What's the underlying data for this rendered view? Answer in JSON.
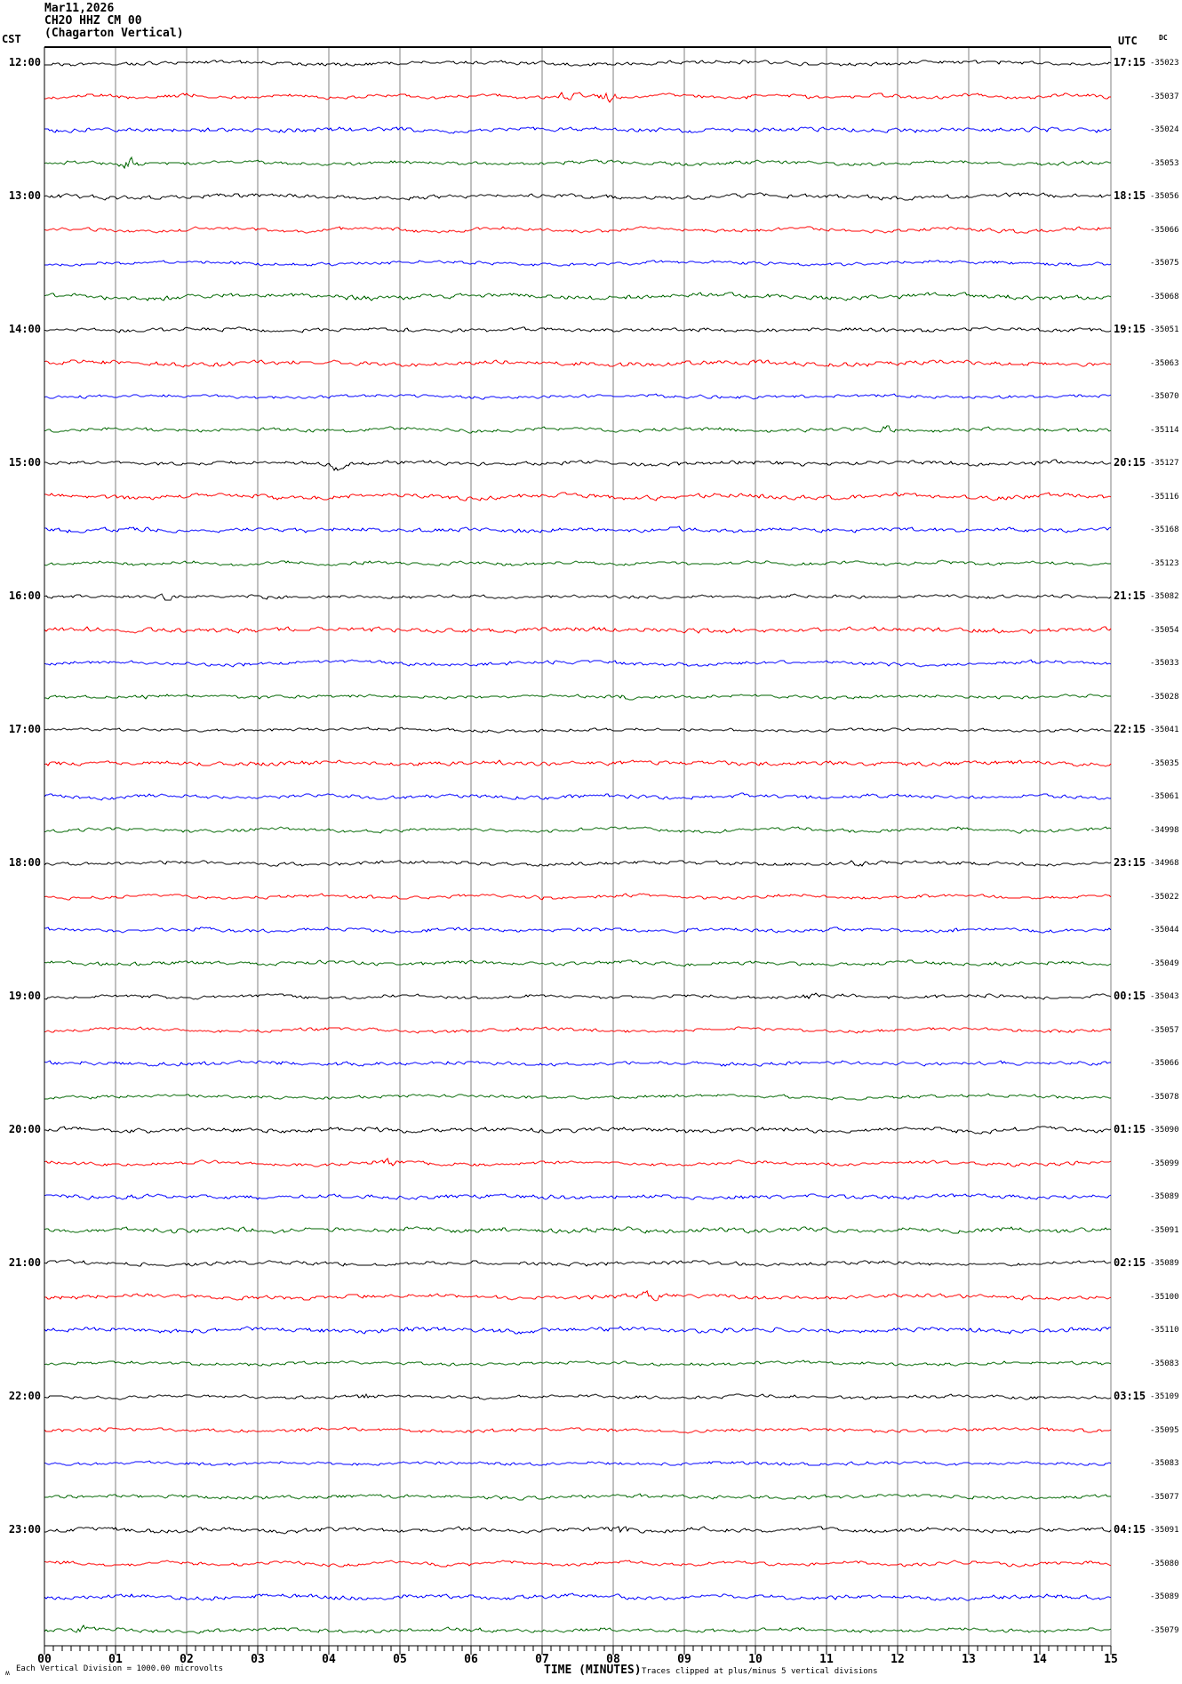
{
  "header": {
    "date": "Mar11,2026",
    "station": "CH2O HHZ CM 00",
    "location": "(Chagarton Vertical)"
  },
  "axes": {
    "left_timezone": "CST",
    "right_timezone": "UTC",
    "right_column_header": "DC",
    "x_title": "TIME (MINUTES)"
  },
  "footer": {
    "watermark": "ʍ",
    "left_note": "Each Vertical Division = 1000.00 microvolts",
    "right_note": "Traces clipped at plus/minus 5 vertical divisions"
  },
  "colors": {
    "black": "#000000",
    "red": "#ff0000",
    "blue": "#0000ff",
    "green": "#006600",
    "grid": "#808080",
    "border": "#000000"
  },
  "chart_data": {
    "type": "line",
    "subtype": "helicorder-seismogram",
    "title": "CH2O HHZ CM 00 (Chagarton Vertical) Mar11,2026",
    "xlabel": "TIME (MINUTES)",
    "x_range_minutes": [
      0,
      15
    ],
    "minutes_per_line": 15,
    "lines_per_hour": 4,
    "x_tick_labels": [
      "00",
      "01",
      "02",
      "03",
      "04",
      "05",
      "06",
      "07",
      "08",
      "09",
      "10",
      "11",
      "12",
      "13",
      "14",
      "15"
    ],
    "clip_divisions": 5,
    "microvolts_per_division": 1000.0,
    "rows": [
      {
        "color": "black",
        "dc": "-35023",
        "cst": "12:00",
        "utc": "17:15"
      },
      {
        "color": "red",
        "dc": "-35037"
      },
      {
        "color": "blue",
        "dc": "-35024"
      },
      {
        "color": "green",
        "dc": "-35053"
      },
      {
        "color": "black",
        "dc": "-35056",
        "cst": "13:00",
        "utc": "18:15"
      },
      {
        "color": "red",
        "dc": "-35066"
      },
      {
        "color": "blue",
        "dc": "-35075"
      },
      {
        "color": "green",
        "dc": "-35068"
      },
      {
        "color": "black",
        "dc": "-35051",
        "cst": "14:00",
        "utc": "19:15"
      },
      {
        "color": "red",
        "dc": "-35063"
      },
      {
        "color": "blue",
        "dc": "-35070"
      },
      {
        "color": "green",
        "dc": "-35114"
      },
      {
        "color": "black",
        "dc": "-35127",
        "cst": "15:00",
        "utc": "20:15"
      },
      {
        "color": "red",
        "dc": "-35116"
      },
      {
        "color": "blue",
        "dc": "-35168"
      },
      {
        "color": "green",
        "dc": "-35123"
      },
      {
        "color": "black",
        "dc": "-35082",
        "cst": "16:00",
        "utc": "21:15"
      },
      {
        "color": "red",
        "dc": "-35054"
      },
      {
        "color": "blue",
        "dc": "-35033"
      },
      {
        "color": "green",
        "dc": "-35028"
      },
      {
        "color": "black",
        "dc": "-35041",
        "cst": "17:00",
        "utc": "22:15"
      },
      {
        "color": "red",
        "dc": "-35035"
      },
      {
        "color": "blue",
        "dc": "-35061"
      },
      {
        "color": "green",
        "dc": "-34998"
      },
      {
        "color": "black",
        "dc": "-34968",
        "cst": "18:00",
        "utc": "23:15"
      },
      {
        "color": "red",
        "dc": "-35022"
      },
      {
        "color": "blue",
        "dc": "-35044"
      },
      {
        "color": "green",
        "dc": "-35049"
      },
      {
        "color": "black",
        "dc": "-35043",
        "cst": "19:00",
        "utc": "00:15"
      },
      {
        "color": "red",
        "dc": "-35057"
      },
      {
        "color": "blue",
        "dc": "-35066"
      },
      {
        "color": "green",
        "dc": "-35078"
      },
      {
        "color": "black",
        "dc": "-35090",
        "cst": "20:00",
        "utc": "01:15"
      },
      {
        "color": "red",
        "dc": "-35099"
      },
      {
        "color": "blue",
        "dc": "-35089"
      },
      {
        "color": "green",
        "dc": "-35091"
      },
      {
        "color": "black",
        "dc": "-35089",
        "cst": "21:00",
        "utc": "02:15"
      },
      {
        "color": "red",
        "dc": "-35100"
      },
      {
        "color": "blue",
        "dc": "-35110"
      },
      {
        "color": "green",
        "dc": "-35083"
      },
      {
        "color": "black",
        "dc": "-35109",
        "cst": "22:00",
        "utc": "03:15"
      },
      {
        "color": "red",
        "dc": "-35095"
      },
      {
        "color": "blue",
        "dc": "-35083"
      },
      {
        "color": "green",
        "dc": "-35077"
      },
      {
        "color": "black",
        "dc": "-35091",
        "cst": "23:00",
        "utc": "04:15"
      },
      {
        "color": "red",
        "dc": "-35080"
      },
      {
        "color": "blue",
        "dc": "-35089"
      },
      {
        "color": "green",
        "dc": "-35079"
      }
    ],
    "events": [
      {
        "r": 1,
        "m": 7.35,
        "a": 1.6
      },
      {
        "r": 1,
        "m": 7.95,
        "a": 2.6
      },
      {
        "r": 3,
        "m": 1.2,
        "a": 3.2
      },
      {
        "r": 11,
        "m": 11.8,
        "a": 2.2
      },
      {
        "r": 12,
        "m": 4.15,
        "a": 2.6
      },
      {
        "r": 16,
        "m": 1.75,
        "a": 1.8
      },
      {
        "r": 19,
        "m": 1.4,
        "a": 1.6
      },
      {
        "r": 19,
        "m": 8.15,
        "a": 1.6
      },
      {
        "r": 24,
        "m": 11.4,
        "a": 2.4
      },
      {
        "r": 28,
        "m": 10.8,
        "a": 1.6
      },
      {
        "r": 33,
        "m": 4.8,
        "a": 2.8
      },
      {
        "r": 37,
        "m": 8.55,
        "a": 3.2
      },
      {
        "r": 40,
        "m": 4.5,
        "a": 2.4
      },
      {
        "r": 44,
        "m": 8.1,
        "a": 2.2
      },
      {
        "r": 47,
        "m": 0.5,
        "a": 2.0
      }
    ]
  }
}
